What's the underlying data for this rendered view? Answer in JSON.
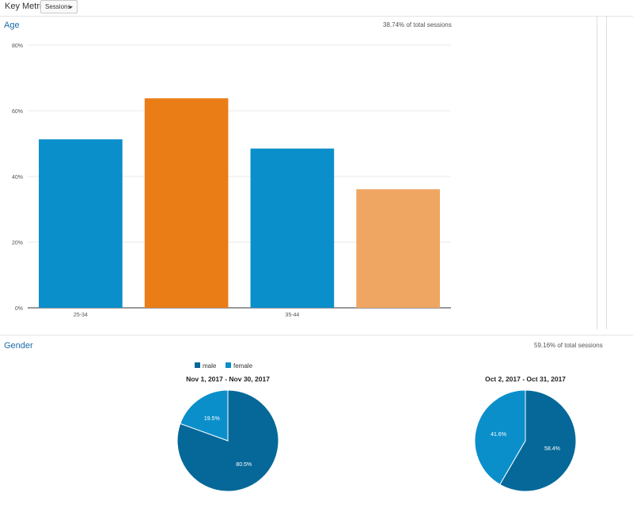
{
  "toolbar": {
    "key_metric_label": "Key Metric:",
    "key_metric_value": "Sessions"
  },
  "age_section": {
    "title": "Age",
    "note": "38.74% of total sessions"
  },
  "gender_section": {
    "title": "Gender",
    "note": "59.16% of total sessions"
  },
  "colors": {
    "blue": "#0b8fca",
    "orange": "#eb7d17",
    "light_orange": "#efa663",
    "male": "#056899",
    "female": "#0b8fca"
  },
  "chart_data": [
    {
      "type": "bar",
      "name": "age",
      "categories": [
        "25-34",
        "",
        "35-44",
        ""
      ],
      "values": [
        51.3,
        63.8,
        48.5,
        36.1
      ],
      "bar_colors": [
        "#0b8fca",
        "#eb7d17",
        "#0b8fca",
        "#efa663"
      ],
      "ylim": [
        0,
        80
      ],
      "yticks": [
        0,
        20,
        40,
        60,
        80
      ],
      "ytick_labels": [
        "0%",
        "20%",
        "40%",
        "60%",
        "80%"
      ],
      "grid": true
    },
    {
      "type": "pie",
      "name": "gender-period-1",
      "title": "Nov 1, 2017 - Nov 30, 2017",
      "slices": [
        {
          "label": "male",
          "value": 80.5,
          "text": "80.5%",
          "color": "#056899"
        },
        {
          "label": "female",
          "value": 19.5,
          "text": "19.5%",
          "color": "#0b8fca"
        }
      ],
      "legend": [
        "male",
        "female"
      ],
      "legend_position": "top"
    },
    {
      "type": "pie",
      "name": "gender-period-2",
      "title": "Oct 2, 2017 - Oct 31, 2017",
      "slices": [
        {
          "label": "male",
          "value": 58.4,
          "text": "58.4%",
          "color": "#056899"
        },
        {
          "label": "female",
          "value": 41.6,
          "text": "41.6%",
          "color": "#0b8fca"
        }
      ]
    }
  ]
}
